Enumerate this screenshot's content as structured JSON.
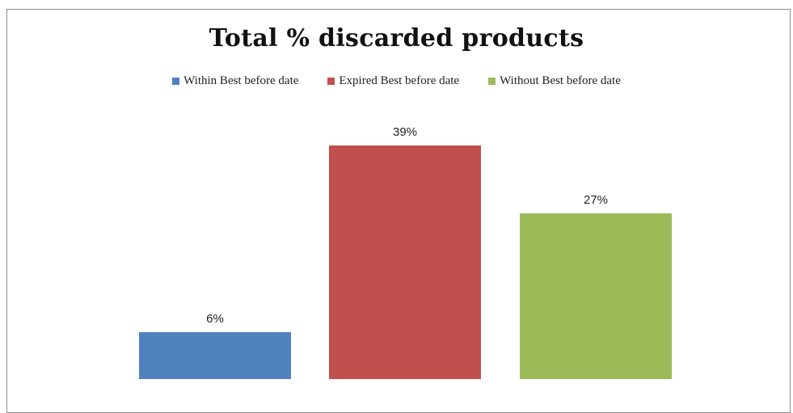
{
  "chart_data": {
    "type": "bar",
    "title": "Total % discarded products",
    "categories": [
      "Within Best before date",
      "Expired Best before date",
      "Without Best before date"
    ],
    "values": [
      6,
      39,
      27
    ],
    "data_labels": [
      "6%",
      "39%",
      "27%"
    ],
    "colors": [
      "#4F81BD",
      "#C0504D",
      "#9BBB59"
    ],
    "legend": [
      "Within Best before date",
      "Expired Best before date",
      "Without Best before date"
    ],
    "legend_position": "top",
    "grid": false,
    "xlabel": "",
    "ylabel": ""
  }
}
